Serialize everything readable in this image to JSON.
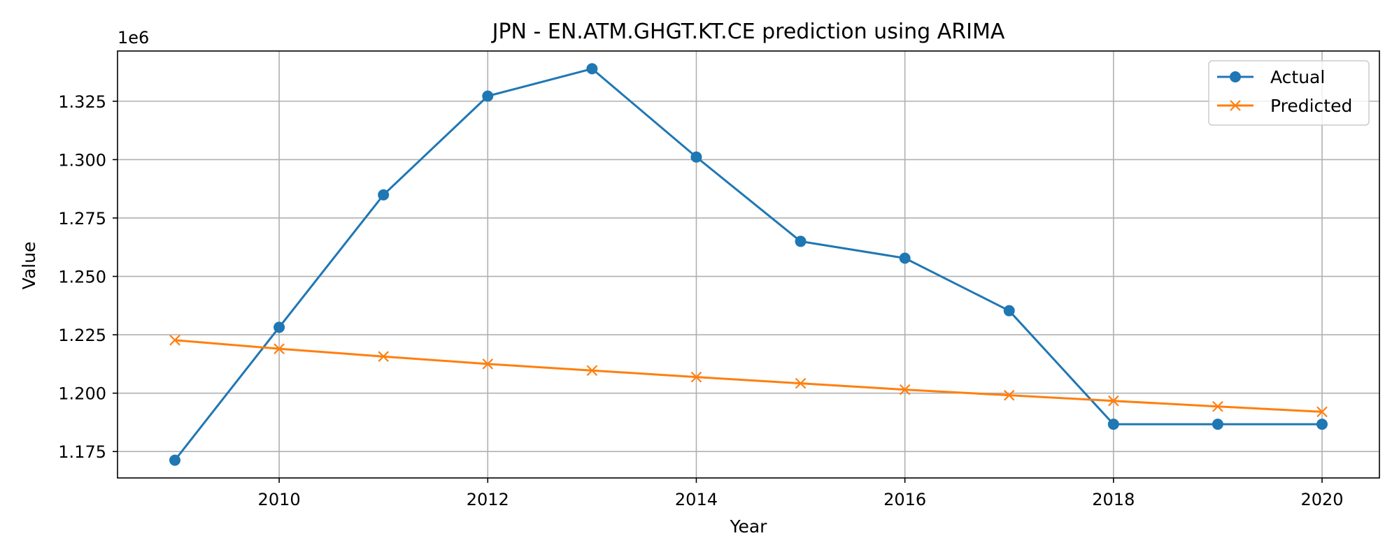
{
  "chart_data": {
    "type": "line",
    "title": "JPN - EN.ATM.GHGT.KT.CE prediction using ARIMA",
    "xlabel": "Year",
    "ylabel": "Value",
    "y_offset_label": "1e6",
    "x": [
      2009,
      2010,
      2011,
      2012,
      2013,
      2014,
      2015,
      2016,
      2017,
      2018,
      2019,
      2020
    ],
    "x_ticks": [
      2010,
      2012,
      2014,
      2016,
      2018,
      2020
    ],
    "y_ticks": [
      1.175,
      1.2,
      1.225,
      1.25,
      1.275,
      1.3,
      1.325
    ],
    "y_tick_labels": [
      "1.175",
      "1.200",
      "1.225",
      "1.250",
      "1.275",
      "1.300",
      "1.325"
    ],
    "xlim": [
      2008.45,
      2020.55
    ],
    "ylim": [
      1.1637,
      1.3465
    ],
    "grid": true,
    "legend_position": "top-right",
    "series": [
      {
        "name": "Actual",
        "color": "#1f77b4",
        "marker": "circle",
        "values": [
          1.1713,
          1.2282,
          1.2849,
          1.3272,
          1.3389,
          1.3011,
          1.265,
          1.2578,
          1.2353,
          1.1867,
          1.1867,
          1.1867
        ]
      },
      {
        "name": "Predicted",
        "color": "#ff7f0e",
        "marker": "x",
        "values": [
          1.2227,
          1.219,
          1.2157,
          1.2125,
          1.2097,
          1.2069,
          1.2042,
          1.2015,
          1.1991,
          1.1967,
          1.1943,
          1.192
        ]
      }
    ]
  }
}
